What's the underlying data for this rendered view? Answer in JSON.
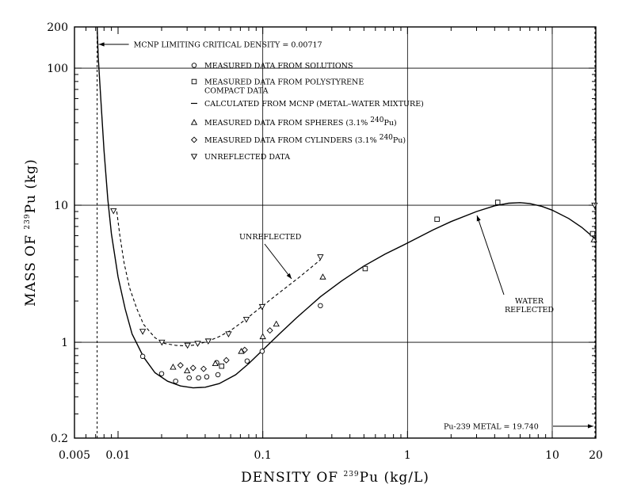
{
  "chart_data": {
    "type": "scatter",
    "x_scale": "log",
    "y_scale": "log",
    "xlim": [
      0.005,
      20
    ],
    "ylim": [
      0.2,
      200
    ],
    "x_ticks": [
      {
        "v": 0.005,
        "label": "0.005"
      },
      {
        "v": 0.01,
        "label": "0.01"
      },
      {
        "v": 0.1,
        "label": "0.1"
      },
      {
        "v": 1,
        "label": "1"
      },
      {
        "v": 10,
        "label": "10"
      },
      {
        "v": 20,
        "label": "20"
      }
    ],
    "y_ticks": [
      {
        "v": 0.2,
        "label": "0.2"
      },
      {
        "v": 1,
        "label": "1"
      },
      {
        "v": 10,
        "label": "10"
      },
      {
        "v": 100,
        "label": "100"
      },
      {
        "v": 200,
        "label": "200"
      }
    ],
    "xlabel": {
      "pre": "DENSITY  OF  ",
      "sup": "239",
      "post": "Pu  (kg/L)"
    },
    "ylabel": {
      "pre": "MASS  OF  ",
      "sup": "239",
      "post": "Pu  (kg)"
    },
    "legend": [
      {
        "marker": "circle",
        "text": "MEASURED DATA FROM SOLUTIONS"
      },
      {
        "marker": "square",
        "text": "MEASURED DATA FROM POLYSTYRENE",
        "text2": "COMPACT DATA"
      },
      {
        "marker": "line",
        "text": "CALCULATED FROM MCNP (METAL–WATER MIXTURE)"
      },
      {
        "marker": "triangle",
        "text": "MEASURED DATA FROM SPHERES (3.1% ",
        "sup": "240",
        "post": "Pu)"
      },
      {
        "marker": "diamond",
        "text": "MEASURED DATA FROM CYLINDERS (3.1% ",
        "sup": "240",
        "post": "Pu)"
      },
      {
        "marker": "triangle-down",
        "text": "UNREFLECTED DATA"
      }
    ],
    "annotations": {
      "limiting": {
        "text": "MCNP LIMITING CRITICAL DENSITY = 0.00717",
        "x": 0.00717
      },
      "metal": {
        "text": "Pu-239 METAL = 19.740",
        "x": 19.74
      },
      "unreflected": {
        "text": "UNREFLECTED"
      },
      "water": {
        "line1": "WATER",
        "line2": "REFLECTED"
      }
    },
    "series": [
      {
        "name": "MEASURED DATA FROM SOLUTIONS",
        "marker": "circle",
        "points": [
          [
            0.0148,
            0.79
          ],
          [
            0.02,
            0.59
          ],
          [
            0.025,
            0.52
          ],
          [
            0.031,
            0.55
          ],
          [
            0.036,
            0.55
          ],
          [
            0.041,
            0.56
          ],
          [
            0.049,
            0.58
          ],
          [
            0.078,
            0.73
          ],
          [
            0.099,
            0.86
          ],
          [
            0.25,
            1.85
          ],
          [
            0.048,
            0.71
          ]
        ]
      },
      {
        "name": "MEASURED DATA FROM POLYSTYRENE COMPACT DATA",
        "marker": "square",
        "points": [
          [
            0.052,
            0.67
          ],
          [
            0.51,
            3.45
          ],
          [
            1.6,
            7.9
          ],
          [
            4.2,
            10.5
          ],
          [
            19.0,
            6.2
          ]
        ]
      },
      {
        "name": "MEASURED DATA FROM SPHERES (3.1% 240Pu)",
        "marker": "triangle",
        "points": [
          [
            0.024,
            0.66
          ],
          [
            0.03,
            0.62
          ],
          [
            0.047,
            0.7
          ],
          [
            0.071,
            0.86
          ],
          [
            0.1,
            1.1
          ],
          [
            0.124,
            1.36
          ],
          [
            0.26,
            3.0
          ],
          [
            19.4,
            5.6
          ]
        ]
      },
      {
        "name": "MEASURED DATA FROM CYLINDERS (3.1% 240Pu)",
        "marker": "diamond",
        "points": [
          [
            0.027,
            0.68
          ],
          [
            0.033,
            0.65
          ],
          [
            0.039,
            0.64
          ],
          [
            0.056,
            0.74
          ],
          [
            0.075,
            0.88
          ],
          [
            0.112,
            1.22
          ]
        ]
      },
      {
        "name": "UNREFLECTED DATA",
        "marker": "triangle-down",
        "points": [
          [
            0.0093,
            9.1
          ],
          [
            0.0148,
            1.2
          ],
          [
            0.0201,
            1.0
          ],
          [
            0.0302,
            0.95
          ],
          [
            0.0355,
            0.98
          ],
          [
            0.042,
            1.02
          ],
          [
            0.058,
            1.15
          ],
          [
            0.077,
            1.47
          ],
          [
            0.099,
            1.82
          ],
          [
            0.25,
            4.2
          ],
          [
            19.6,
            10.0
          ]
        ]
      },
      {
        "name": "CALCULATED FROM MCNP (METAL–WATER MIXTURE)",
        "line_style": "solid",
        "points": [
          [
            0.00717,
            200
          ],
          [
            0.0073,
            120
          ],
          [
            0.0076,
            60
          ],
          [
            0.008,
            25
          ],
          [
            0.0085,
            11
          ],
          [
            0.009,
            6.2
          ],
          [
            0.01,
            3.0
          ],
          [
            0.0112,
            1.75
          ],
          [
            0.0125,
            1.15
          ],
          [
            0.015,
            0.78
          ],
          [
            0.018,
            0.6
          ],
          [
            0.022,
            0.52
          ],
          [
            0.027,
            0.48
          ],
          [
            0.033,
            0.465
          ],
          [
            0.04,
            0.47
          ],
          [
            0.05,
            0.5
          ],
          [
            0.065,
            0.58
          ],
          [
            0.08,
            0.7
          ],
          [
            0.1,
            0.88
          ],
          [
            0.13,
            1.15
          ],
          [
            0.17,
            1.5
          ],
          [
            0.25,
            2.15
          ],
          [
            0.35,
            2.8
          ],
          [
            0.5,
            3.6
          ],
          [
            0.7,
            4.4
          ],
          [
            1.0,
            5.3
          ],
          [
            1.5,
            6.6
          ],
          [
            2.0,
            7.6
          ],
          [
            3.0,
            9.0
          ],
          [
            4.0,
            9.9
          ],
          [
            5.0,
            10.35
          ],
          [
            6.0,
            10.45
          ],
          [
            7.0,
            10.3
          ],
          [
            8.5,
            9.8
          ],
          [
            10.0,
            9.2
          ],
          [
            13.0,
            8.0
          ],
          [
            16.0,
            6.9
          ],
          [
            19.74,
            5.7
          ]
        ]
      },
      {
        "name": "UNREFLECTED",
        "line_style": "dashed",
        "points": [
          [
            0.0098,
            9.0
          ],
          [
            0.0103,
            6.0
          ],
          [
            0.011,
            3.8
          ],
          [
            0.012,
            2.5
          ],
          [
            0.0135,
            1.75
          ],
          [
            0.015,
            1.35
          ],
          [
            0.018,
            1.08
          ],
          [
            0.021,
            0.98
          ],
          [
            0.025,
            0.95
          ],
          [
            0.03,
            0.94
          ],
          [
            0.035,
            0.96
          ],
          [
            0.042,
            1.02
          ],
          [
            0.05,
            1.1
          ],
          [
            0.06,
            1.22
          ],
          [
            0.075,
            1.45
          ],
          [
            0.1,
            1.85
          ],
          [
            0.13,
            2.3
          ],
          [
            0.18,
            3.0
          ],
          [
            0.25,
            4.0
          ]
        ]
      }
    ]
  }
}
